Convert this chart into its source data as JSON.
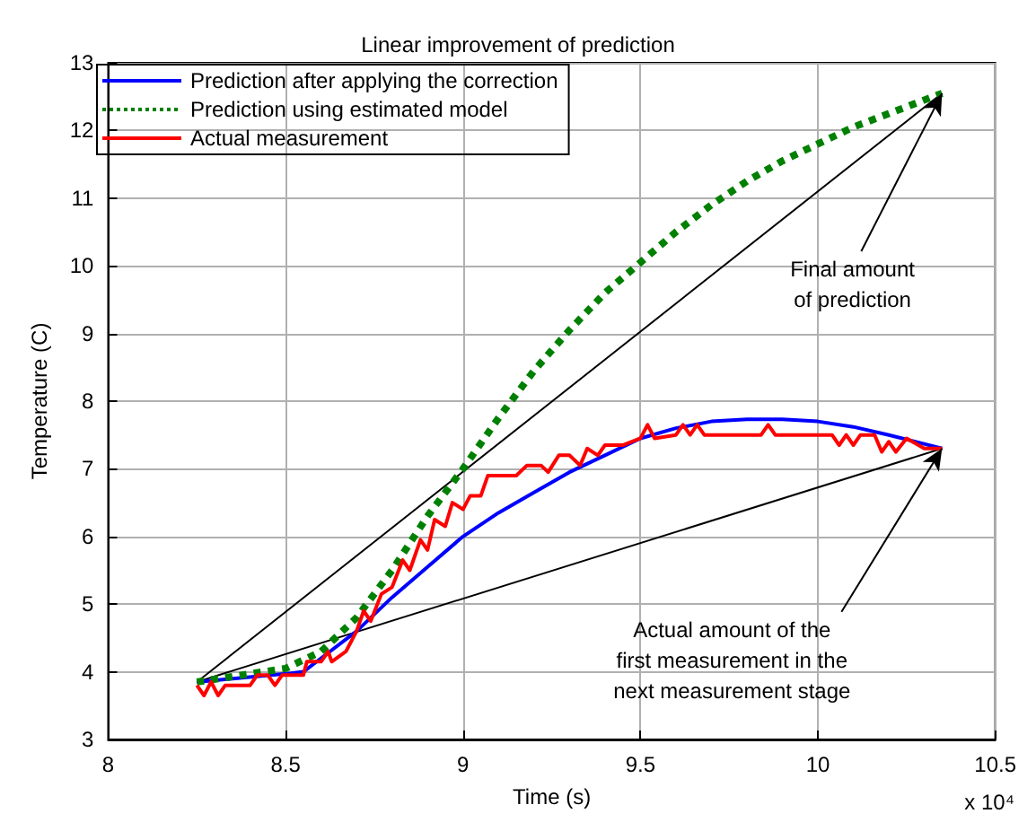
{
  "chart_data": {
    "type": "line",
    "title": "Linear improvement of prediction",
    "xlabel": "Time (s)",
    "ylabel": "Temperature (C)",
    "xlim": [
      8,
      10.5
    ],
    "xticks": [
      8,
      8.5,
      9,
      9.5,
      10,
      10.5
    ],
    "ylim": [
      3,
      13
    ],
    "yticks": [
      3,
      4,
      5,
      6,
      7,
      8,
      9,
      10,
      11,
      12,
      13
    ],
    "grid": true,
    "legend": "top left",
    "marker": "none",
    "series": [
      {
        "name": "Prediction after applying the correction",
        "color": "#0000ff",
        "line_style": "solid",
        "x": [
          8.25,
          8.5,
          8.55,
          8.6,
          8.7,
          8.8,
          8.9,
          9.0,
          9.1,
          9.2,
          9.3,
          9.4,
          9.5,
          9.6,
          9.7,
          9.8,
          9.9,
          10.0,
          10.1,
          10.2,
          10.35
        ],
        "values": [
          3.85,
          3.97,
          4.0,
          4.2,
          4.6,
          5.1,
          5.55,
          6.0,
          6.35,
          6.65,
          6.95,
          7.2,
          7.45,
          7.6,
          7.7,
          7.73,
          7.73,
          7.7,
          7.62,
          7.5,
          7.3
        ]
      },
      {
        "name": "Prediction using estimated model",
        "color": "#008000",
        "line_style": "dotted",
        "x": [
          8.25,
          8.5,
          8.6,
          8.7,
          8.8,
          8.9,
          9.0,
          9.1,
          9.2,
          9.3,
          9.4,
          9.5,
          9.6,
          9.7,
          9.8,
          9.9,
          10.0,
          10.1,
          10.2,
          10.35
        ],
        "values": [
          3.85,
          4.05,
          4.3,
          4.8,
          5.5,
          6.3,
          7.0,
          7.75,
          8.45,
          9.05,
          9.6,
          10.05,
          10.5,
          10.9,
          11.25,
          11.55,
          11.8,
          12.05,
          12.25,
          12.55
        ]
      },
      {
        "name": "Actual measurement",
        "color": "#ff0000",
        "line_style": "solid",
        "x": [
          8.25,
          8.27,
          8.29,
          8.31,
          8.33,
          8.4,
          8.42,
          8.45,
          8.47,
          8.49,
          8.55,
          8.56,
          8.6,
          8.62,
          8.63,
          8.67,
          8.7,
          8.72,
          8.74,
          8.77,
          8.8,
          8.83,
          8.85,
          8.88,
          8.9,
          8.92,
          8.95,
          8.97,
          9.0,
          9.02,
          9.05,
          9.07,
          9.15,
          9.18,
          9.22,
          9.24,
          9.27,
          9.3,
          9.33,
          9.35,
          9.38,
          9.4,
          9.45,
          9.5,
          9.52,
          9.54,
          9.6,
          9.62,
          9.64,
          9.66,
          9.68,
          9.84,
          9.86,
          9.88,
          10.04,
          10.06,
          10.08,
          10.1,
          10.12,
          10.16,
          10.18,
          10.2,
          10.22,
          10.25,
          10.3,
          10.35
        ],
        "values": [
          3.8,
          3.65,
          3.85,
          3.65,
          3.8,
          3.8,
          3.95,
          3.95,
          3.8,
          3.95,
          3.95,
          4.15,
          4.15,
          4.3,
          4.15,
          4.3,
          4.6,
          4.9,
          4.75,
          5.15,
          5.25,
          5.65,
          5.5,
          5.95,
          5.8,
          6.25,
          6.15,
          6.5,
          6.4,
          6.6,
          6.6,
          6.9,
          6.9,
          7.05,
          7.05,
          6.95,
          7.2,
          7.2,
          7.05,
          7.3,
          7.2,
          7.35,
          7.35,
          7.45,
          7.65,
          7.45,
          7.5,
          7.65,
          7.5,
          7.65,
          7.5,
          7.5,
          7.65,
          7.5,
          7.5,
          7.35,
          7.5,
          7.35,
          7.5,
          7.5,
          7.25,
          7.4,
          7.25,
          7.45,
          7.3,
          7.3
        ]
      },
      {
        "type": "line",
        "color": "#000000",
        "line_style": "solid",
        "x": [
          8.25,
          10.35
        ],
        "values": [
          3.85,
          12.55
        ]
      },
      {
        "type": "line",
        "color": "#000000",
        "line_style": "solid",
        "x": [
          8.25,
          10.35
        ],
        "values": [
          3.85,
          7.3
        ]
      }
    ],
    "annotations": [
      "x 10⁴",
      {
        "text": "Final amount\nof prediction",
        "x": 10.35,
        "y": 12.55
      },
      {
        "text": "Actual amount of the\nfirst measurement in the\nnext measurement stage",
        "x": 10.35,
        "y": 7.3
      }
    ]
  }
}
